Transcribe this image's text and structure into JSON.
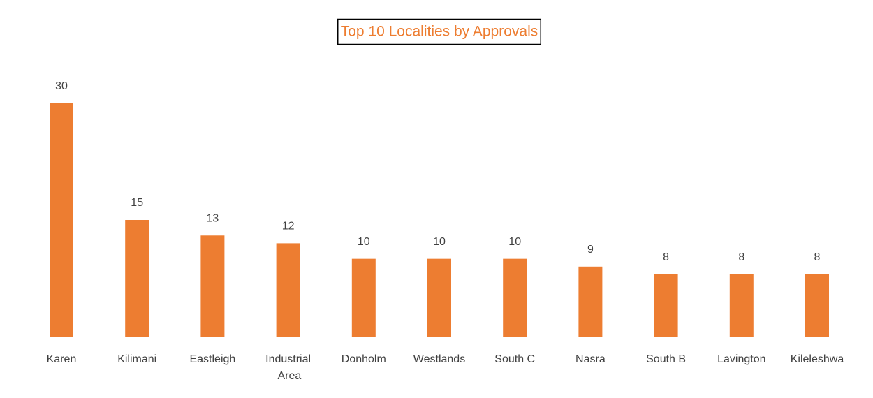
{
  "chart_data": {
    "type": "bar",
    "title": "Top 10 Localities by Approvals",
    "categories": [
      "Karen",
      "Kilimani",
      "Eastleigh",
      "Industrial Area",
      "Donholm",
      "Westlands",
      "South C",
      "Nasra",
      "South B",
      "Lavington",
      "Kileleshwa"
    ],
    "values": [
      30,
      15,
      13,
      12,
      10,
      10,
      10,
      9,
      8,
      8,
      8
    ],
    "color": "#ed7d31",
    "grid": false
  }
}
